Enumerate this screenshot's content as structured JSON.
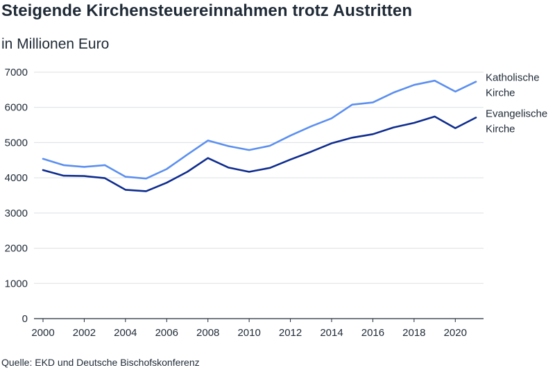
{
  "chart_data": {
    "type": "line",
    "title": "Steigende Kirchensteuereinnahmen trotz Austritten",
    "subtitle": "in Millionen Euro",
    "source": "Quelle: EKD und Deutsche Bischofskonferenz",
    "x": [
      2000,
      2001,
      2002,
      2003,
      2004,
      2005,
      2006,
      2007,
      2008,
      2009,
      2010,
      2011,
      2012,
      2013,
      2014,
      2015,
      2016,
      2017,
      2018,
      2019,
      2020,
      2021
    ],
    "x_ticks": [
      2000,
      2002,
      2004,
      2006,
      2008,
      2010,
      2012,
      2014,
      2016,
      2018,
      2020
    ],
    "y_ticks": [
      0,
      1000,
      2000,
      3000,
      4000,
      5000,
      6000,
      7000
    ],
    "ylim": [
      0,
      7000
    ],
    "grid": true,
    "legend": "right, labels at line ends",
    "series": [
      {
        "name_lines": [
          "Katholische",
          "Kirche"
        ],
        "color": "#5b8ff0",
        "values": [
          4540,
          4360,
          4310,
          4360,
          4030,
          3980,
          4250,
          4660,
          5060,
          4900,
          4790,
          4910,
          5200,
          5460,
          5690,
          6080,
          6140,
          6420,
          6640,
          6760,
          6450,
          6730
        ]
      },
      {
        "name_lines": [
          "Evangelische",
          "Kirche"
        ],
        "color": "#0e2c8e",
        "values": [
          4220,
          4060,
          4050,
          3990,
          3660,
          3620,
          3860,
          4170,
          4560,
          4290,
          4170,
          4280,
          4520,
          4740,
          4980,
          5140,
          5240,
          5430,
          5560,
          5740,
          5410,
          5710
        ]
      }
    ]
  }
}
